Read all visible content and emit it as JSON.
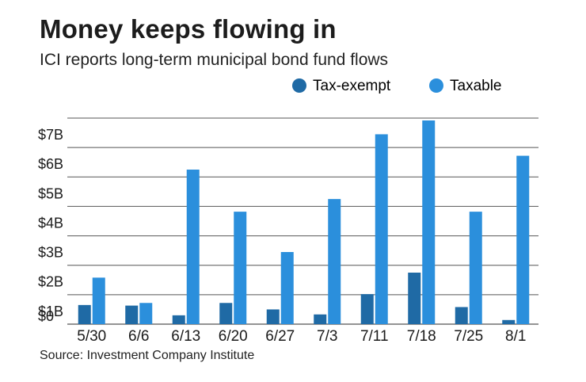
{
  "title": "Money keeps flowing in",
  "subtitle": "ICI reports long-term municipal bond fund flows",
  "source": "Source: Investment Company Institute",
  "colors": {
    "tax_exempt": "#1f6aa5",
    "taxable": "#2b8fdc",
    "grid": "#555555",
    "text": "#1a1a1a"
  },
  "chart_data": {
    "type": "bar",
    "title": "Money keeps flowing in",
    "subtitle": "ICI reports long-term municipal bond fund flows",
    "xlabel": "",
    "ylabel": "",
    "ylim": [
      0,
      7
    ],
    "y_ticks": [
      0,
      1,
      2,
      3,
      4,
      5,
      6,
      7
    ],
    "y_tick_labels": [
      "$0",
      "$1B",
      "$2B",
      "$3B",
      "$4B",
      "$5B",
      "$6B",
      "$7B"
    ],
    "grid": true,
    "legend_position": "top-right",
    "categories": [
      "5/30",
      "6/6",
      "6/13",
      "6/20",
      "6/27",
      "7/3",
      "7/11",
      "7/18",
      "7/25",
      "8/1"
    ],
    "series": [
      {
        "name": "Tax-exempt",
        "values": [
          0.65,
          0.63,
          0.3,
          0.72,
          0.5,
          0.33,
          1.02,
          1.75,
          0.58,
          0.14
        ]
      },
      {
        "name": "Taxable",
        "values": [
          1.58,
          0.72,
          5.25,
          3.82,
          2.45,
          4.25,
          6.45,
          6.92,
          3.82,
          5.72
        ]
      }
    ]
  }
}
